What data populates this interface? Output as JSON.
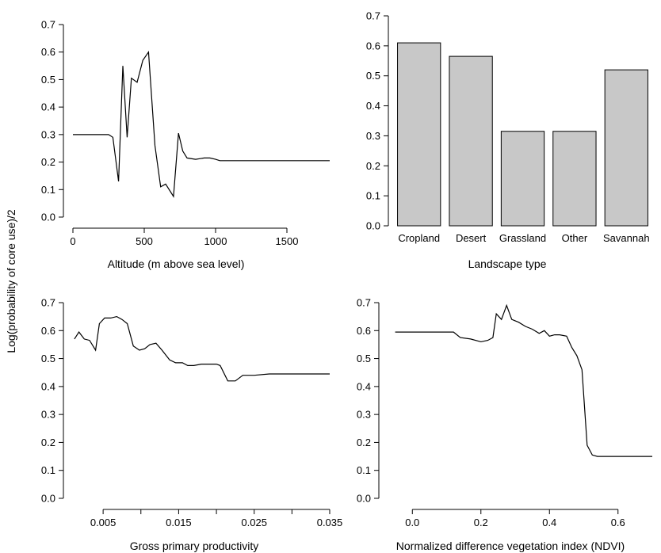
{
  "shared": {
    "ylabel": "Log(probability of core use)/2"
  },
  "chart_data": [
    {
      "type": "line",
      "xlabel": "Altitude (m above sea level)",
      "xlim": [
        0,
        1800
      ],
      "ylim": [
        0,
        0.7
      ],
      "xticks": [
        0,
        500,
        1000,
        1500
      ],
      "xtick_labels": [
        "0",
        "500",
        "1000",
        "1500"
      ],
      "yticks": [
        0,
        0.1,
        0.2,
        0.3,
        0.4,
        0.5,
        0.6,
        0.7
      ],
      "ytick_labels": [
        "0.0",
        "0.1",
        "0.2",
        "0.3",
        "0.4",
        "0.5",
        "0.6",
        "0.7"
      ],
      "x": [
        0,
        250,
        280,
        320,
        350,
        380,
        410,
        450,
        490,
        530,
        575,
        615,
        650,
        705,
        740,
        770,
        800,
        860,
        920,
        960,
        1000,
        1030,
        1800
      ],
      "y": [
        0.3,
        0.3,
        0.29,
        0.13,
        0.55,
        0.29,
        0.505,
        0.49,
        0.57,
        0.6,
        0.26,
        0.11,
        0.12,
        0.075,
        0.305,
        0.24,
        0.215,
        0.21,
        0.215,
        0.215,
        0.21,
        0.205,
        0.205
      ]
    },
    {
      "type": "bar",
      "xlabel": "Landscape type",
      "ylim": [
        0,
        0.7
      ],
      "yticks": [
        0,
        0.1,
        0.2,
        0.3,
        0.4,
        0.5,
        0.6,
        0.7
      ],
      "ytick_labels": [
        "0.0",
        "0.1",
        "0.2",
        "0.3",
        "0.4",
        "0.5",
        "0.6",
        "0.7"
      ],
      "categories": [
        "Cropland",
        "Desert",
        "Grassland",
        "Other",
        "Savannah"
      ],
      "values": [
        0.61,
        0.565,
        0.315,
        0.315,
        0.52
      ]
    },
    {
      "type": "line",
      "xlabel": "Gross primary productivity",
      "xlim": [
        0.001,
        0.035
      ],
      "ylim": [
        0,
        0.7
      ],
      "xticks": [
        0.005,
        0.01,
        0.015,
        0.02,
        0.025,
        0.03,
        0.035
      ],
      "xtick_labels": [
        "0.005",
        "",
        "0.015",
        "",
        "0.025",
        "",
        "0.035"
      ],
      "yticks": [
        0,
        0.1,
        0.2,
        0.3,
        0.4,
        0.5,
        0.6,
        0.7
      ],
      "ytick_labels": [
        "0.0",
        "0.1",
        "0.2",
        "0.3",
        "0.4",
        "0.5",
        "0.6",
        "0.7"
      ],
      "x": [
        0.0012,
        0.0018,
        0.0025,
        0.0032,
        0.004,
        0.0045,
        0.0052,
        0.006,
        0.0068,
        0.0075,
        0.0082,
        0.009,
        0.0098,
        0.0105,
        0.0112,
        0.012,
        0.0128,
        0.0138,
        0.0146,
        0.0155,
        0.0162,
        0.017,
        0.018,
        0.019,
        0.02,
        0.0205,
        0.0215,
        0.0225,
        0.0235,
        0.025,
        0.027,
        0.03,
        0.035
      ],
      "y": [
        0.57,
        0.595,
        0.57,
        0.565,
        0.53,
        0.625,
        0.645,
        0.645,
        0.65,
        0.64,
        0.625,
        0.545,
        0.53,
        0.535,
        0.55,
        0.555,
        0.53,
        0.495,
        0.485,
        0.485,
        0.475,
        0.475,
        0.48,
        0.48,
        0.48,
        0.475,
        0.42,
        0.42,
        0.44,
        0.44,
        0.445,
        0.445,
        0.445
      ]
    },
    {
      "type": "line",
      "xlabel": "Normalized difference vegetation index (NDVI)",
      "xlim": [
        -0.07,
        0.7
      ],
      "ylim": [
        0,
        0.7
      ],
      "xticks": [
        0.0,
        0.2,
        0.4,
        0.6
      ],
      "xtick_labels": [
        "0.0",
        "0.2",
        "0.4",
        "0.6"
      ],
      "yticks": [
        0,
        0.1,
        0.2,
        0.3,
        0.4,
        0.5,
        0.6,
        0.7
      ],
      "ytick_labels": [
        "0.0",
        "0.1",
        "0.2",
        "0.3",
        "0.4",
        "0.5",
        "0.6",
        "0.7"
      ],
      "x": [
        -0.05,
        0.12,
        0.14,
        0.17,
        0.2,
        0.22,
        0.235,
        0.245,
        0.26,
        0.275,
        0.29,
        0.31,
        0.33,
        0.35,
        0.37,
        0.385,
        0.4,
        0.415,
        0.43,
        0.45,
        0.465,
        0.48,
        0.495,
        0.51,
        0.525,
        0.54,
        0.7
      ],
      "y": [
        0.595,
        0.595,
        0.575,
        0.57,
        0.56,
        0.565,
        0.575,
        0.66,
        0.64,
        0.69,
        0.64,
        0.63,
        0.615,
        0.605,
        0.59,
        0.6,
        0.58,
        0.585,
        0.585,
        0.58,
        0.54,
        0.51,
        0.46,
        0.19,
        0.155,
        0.15,
        0.15
      ]
    }
  ]
}
